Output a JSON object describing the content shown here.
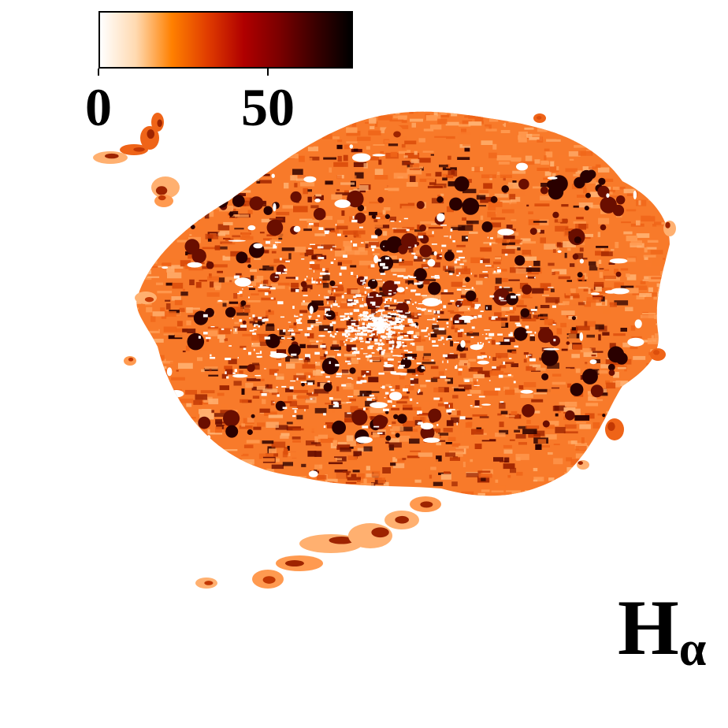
{
  "colorbar": {
    "colors": [
      "#ffffff",
      "#ffd9b0",
      "#ff8000",
      "#e03c00",
      "#b00000",
      "#7a0000",
      "#3a0000",
      "#000000"
    ],
    "ticks": [
      "0",
      "50"
    ],
    "tick_values": [
      0,
      50
    ],
    "range": [
      0,
      75
    ]
  },
  "label": {
    "main": "H",
    "subscript": "α"
  },
  "map": {
    "palette": [
      "#ffb070",
      "#ff9a50",
      "#f87a2a",
      "#ef6418",
      "#dc4e0c",
      "#c23804",
      "#9e2400",
      "#6a0e00",
      "#2a0000"
    ],
    "background": "#ffffff"
  }
}
